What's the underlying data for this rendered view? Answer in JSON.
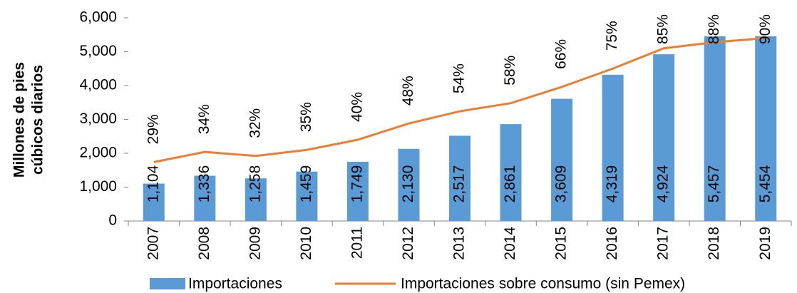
{
  "chart_data": {
    "type": "bar-line",
    "ylabel": [
      "Millones de pies",
      "cúbicos diarios"
    ],
    "categories": [
      "2007",
      "2008",
      "2009",
      "2010",
      "2011",
      "2012",
      "2013",
      "2014",
      "2015",
      "2016",
      "2017",
      "2018",
      "2019"
    ],
    "series": [
      {
        "name": "Importaciones",
        "type": "bar",
        "color": "#5b9bd5",
        "values": [
          1104,
          1336,
          1258,
          1459,
          1749,
          2130,
          2517,
          2861,
          3609,
          4319,
          4924,
          5457,
          5454
        ],
        "value_labels": [
          "1,104",
          "1,336",
          "1,258",
          "1,459",
          "1,749",
          "2,130",
          "2,517",
          "2,861",
          "3,609",
          "4,319",
          "4,924",
          "5,457",
          "5,454"
        ]
      },
      {
        "name": "Importaciones sobre consumo (sin Pemex)",
        "type": "line",
        "color": "#ed7d31",
        "axis": "y2",
        "values": [
          29,
          34,
          32,
          35,
          40,
          48,
          54,
          58,
          66,
          75,
          85,
          88,
          90
        ],
        "value_labels": [
          "29%",
          "34%",
          "32%",
          "35%",
          "40%",
          "48%",
          "54%",
          "58%",
          "66%",
          "75%",
          "85%",
          "88%",
          "90%"
        ]
      }
    ],
    "ylim": [
      0,
      6000
    ],
    "yticks": [
      0,
      {
        "value": 1000,
        "label": "1,000"
      },
      {
        "value": 2000,
        "label": "2,000"
      },
      {
        "value": 3000,
        "label": "3,000"
      },
      {
        "value": 4000,
        "label": "4,000"
      },
      {
        "value": 5000,
        "label": "5,000"
      },
      {
        "value": 6000,
        "label": "6,000"
      }
    ],
    "y2lim": [
      0,
      100
    ]
  }
}
